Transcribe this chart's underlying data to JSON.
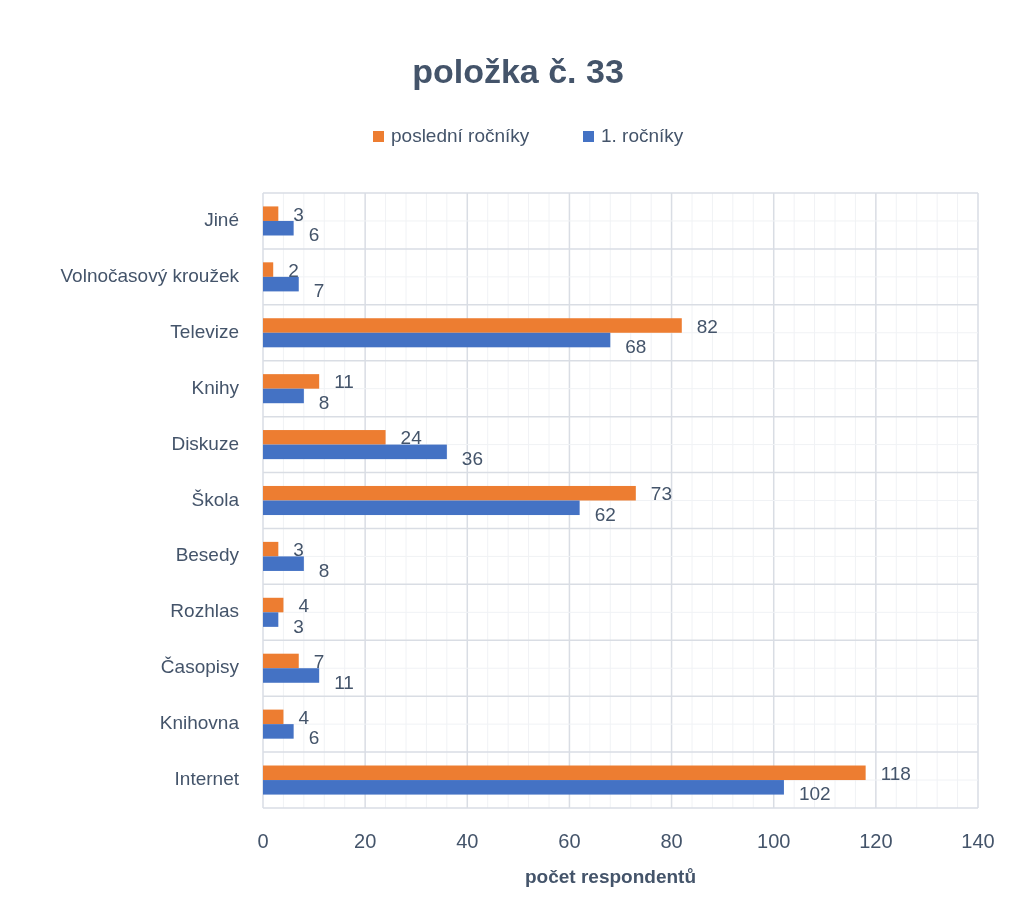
{
  "chart_data": {
    "type": "bar",
    "orientation": "horizontal",
    "title": "položka č. 33",
    "xlabel": "počet respondentů",
    "categories": [
      "Jiné",
      "Volnočasový kroužek",
      "Televize",
      "Knihy",
      "Diskuze",
      "Škola",
      "Besedy",
      "Rozhlas",
      "Časopisy",
      "Knihovna",
      "Internet"
    ],
    "series": [
      {
        "name": "poslední ročníky",
        "color": "#ed7d31",
        "values": [
          3,
          2,
          82,
          11,
          24,
          73,
          3,
          4,
          7,
          4,
          118
        ]
      },
      {
        "name": "1. ročníky",
        "color": "#4472c4",
        "values": [
          6,
          7,
          68,
          8,
          36,
          62,
          8,
          3,
          11,
          6,
          102
        ]
      }
    ],
    "xlim": [
      0,
      140
    ],
    "xticks": [
      0,
      {
        "value": 4,
        "label": null
      },
      {
        "value": 8,
        "label": null
      },
      {
        "value": 12,
        "label": null
      },
      {
        "value": 16,
        "label": null
      },
      20,
      {
        "value": 24,
        "label": null
      },
      {
        "value": 28,
        "label": null
      },
      {
        "value": 32,
        "label": null
      },
      {
        "value": 36,
        "label": null
      },
      40,
      {
        "value": 44,
        "label": null
      },
      {
        "value": 48,
        "label": null
      },
      {
        "value": 52,
        "label": null
      },
      {
        "value": 56,
        "label": null
      },
      60,
      {
        "value": 64,
        "label": null
      },
      {
        "value": 68,
        "label": null
      },
      {
        "value": 72,
        "label": null
      },
      {
        "value": 76,
        "label": null
      },
      80,
      {
        "value": 84,
        "label": null
      },
      {
        "value": 88,
        "label": null
      },
      {
        "value": 92,
        "label": null
      },
      {
        "value": 96,
        "label": null
      },
      100,
      {
        "value": 104,
        "label": null
      },
      {
        "value": 108,
        "label": null
      },
      {
        "value": 112,
        "label": null
      },
      {
        "value": 116,
        "label": null
      },
      120,
      {
        "value": 124,
        "label": null
      },
      {
        "value": 128,
        "label": null
      },
      {
        "value": 132,
        "label": null
      },
      {
        "value": 136,
        "label": null
      },
      140
    ],
    "grid": true,
    "legend": "top",
    "data_labels": true
  }
}
